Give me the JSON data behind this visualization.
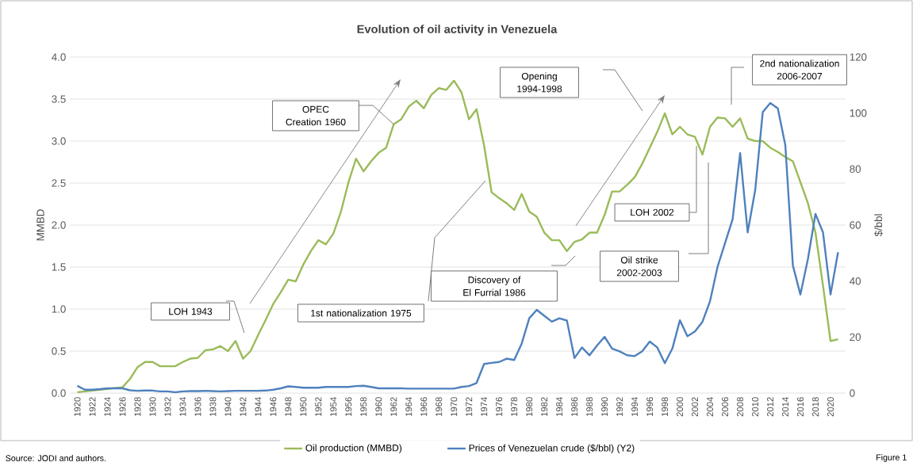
{
  "chart_data": {
    "type": "line",
    "title": "Evolution of oil activity in Venezuela",
    "ylabel": "MMBD",
    "y2label": "$/bbl",
    "categories": [
      "1920",
      null,
      "1922",
      null,
      "1924",
      null,
      "1926",
      null,
      "1928",
      null,
      "1930",
      null,
      "1932",
      null,
      "1934",
      null,
      "1936",
      null,
      "1938",
      null,
      "1940",
      null,
      "1942",
      null,
      "1944",
      null,
      "1946",
      null,
      "1948",
      null,
      "1950",
      null,
      "1952",
      null,
      "1954",
      null,
      "1956",
      null,
      "1958",
      null,
      "1960",
      null,
      "1962",
      null,
      "1964",
      null,
      "1966",
      null,
      "1968",
      null,
      "1970",
      null,
      "1972",
      null,
      "1974",
      null,
      "1976",
      null,
      "1978",
      null,
      "1980",
      null,
      "1982",
      null,
      "1984",
      null,
      "1986",
      null,
      "1988",
      null,
      "1990",
      null,
      "1992",
      null,
      "1994",
      null,
      "1996",
      null,
      "1998",
      null,
      "2000",
      null,
      "2002",
      null,
      "2004",
      null,
      "2006",
      null,
      "2008",
      null,
      "2010",
      null,
      "2012",
      null,
      "2014",
      null,
      "2016",
      null,
      "2018",
      null,
      "2020",
      null
    ],
    "series": [
      {
        "name": "Oil production (MMBD)",
        "color": "#9bbb59",
        "values": [
          0.01,
          0.02,
          0.03,
          0.04,
          0.05,
          0.06,
          0.07,
          0.17,
          0.31,
          0.37,
          0.37,
          0.32,
          0.32,
          0.32,
          0.37,
          0.41,
          0.42,
          0.51,
          0.52,
          0.56,
          0.5,
          0.62,
          0.41,
          0.5,
          0.69,
          0.87,
          1.06,
          1.2,
          1.35,
          1.33,
          1.53,
          1.69,
          1.82,
          1.77,
          1.9,
          2.16,
          2.51,
          2.79,
          2.64,
          2.76,
          2.86,
          2.92,
          3.2,
          3.26,
          3.41,
          3.48,
          3.39,
          3.55,
          3.63,
          3.61,
          3.72,
          3.58,
          3.26,
          3.38,
          2.95,
          2.39,
          2.32,
          2.26,
          2.18,
          2.37,
          2.16,
          2.1,
          1.91,
          1.82,
          1.82,
          1.69,
          1.8,
          1.83,
          1.91,
          1.91,
          2.12,
          2.4,
          2.4,
          2.48,
          2.57,
          2.73,
          2.92,
          3.11,
          3.33,
          3.08,
          3.17,
          3.08,
          3.05,
          2.84,
          3.17,
          3.28,
          3.27,
          3.17,
          3.27,
          3.03,
          3.0,
          3.0,
          2.92,
          2.87,
          2.81,
          2.76,
          2.51,
          2.26,
          1.91,
          1.28,
          0.62,
          0.64
        ]
      },
      {
        "name": "Prices of Venezuelan crude ($/bbl) (Y2)",
        "color": "#4f81bd",
        "axis": "y2",
        "values": [
          2.6,
          1.2,
          1.2,
          1.4,
          1.7,
          1.7,
          1.7,
          1.0,
          0.8,
          0.9,
          0.9,
          0.6,
          0.6,
          0.3,
          0.6,
          0.7,
          0.7,
          0.8,
          0.7,
          0.6,
          0.7,
          0.8,
          0.8,
          0.8,
          0.8,
          0.9,
          1.2,
          1.7,
          2.4,
          2.2,
          1.9,
          1.9,
          1.9,
          2.2,
          2.2,
          2.2,
          2.2,
          2.5,
          2.6,
          2.2,
          1.7,
          1.7,
          1.7,
          1.7,
          1.6,
          1.6,
          1.6,
          1.6,
          1.6,
          1.6,
          1.6,
          2.2,
          2.5,
          3.6,
          10.4,
          10.8,
          11.1,
          12.3,
          11.8,
          17.7,
          26.7,
          29.7,
          27.6,
          25.5,
          26.7,
          25.9,
          12.5,
          16.3,
          13.5,
          17.0,
          20.1,
          15.9,
          14.9,
          13.5,
          13.2,
          14.9,
          18.4,
          16.3,
          10.7,
          15.9,
          26.0,
          20.3,
          22.0,
          25.5,
          32.8,
          45.1,
          53.6,
          62.1,
          85.7,
          57.4,
          72.5,
          100.3,
          103.6,
          101.7,
          88.5,
          45.6,
          35.2,
          47.9,
          64.0,
          57.4,
          35.2,
          50.3
        ]
      }
    ],
    "ylim": [
      0,
      4
    ],
    "yticks": [
      {
        "value": 0,
        "label": "0.0"
      },
      {
        "value": 0.5,
        "label": "0.5"
      },
      {
        "value": 1,
        "label": "1.0"
      },
      {
        "value": 1.5,
        "label": "1.5"
      },
      {
        "value": 2,
        "label": "2.0"
      },
      {
        "value": 2.5,
        "label": "2.5"
      },
      {
        "value": 3,
        "label": "3.0"
      },
      {
        "value": 3.5,
        "label": "3.5"
      },
      {
        "value": 4,
        "label": "4.0"
      }
    ],
    "y2lim": [
      0,
      120
    ],
    "y2ticks": [
      0,
      20,
      40,
      60,
      80,
      100,
      120
    ],
    "grid": "y",
    "legend": "bottom",
    "marker": "none",
    "line_style": "solid",
    "annotations": [
      {
        "text": "OPEC Creation 1960",
        "x": "1962",
        "y": 3.2
      },
      "LOH 1943",
      "1st nationalization 1975",
      "Discovery of El Furrial 1986",
      "Opening 1994-1998",
      "LOH 2002",
      "Oil strike 2002-2003",
      "2nd nationalization 2006-2007",
      "Source: JODI and authors.",
      "Figure 1"
    ]
  }
}
